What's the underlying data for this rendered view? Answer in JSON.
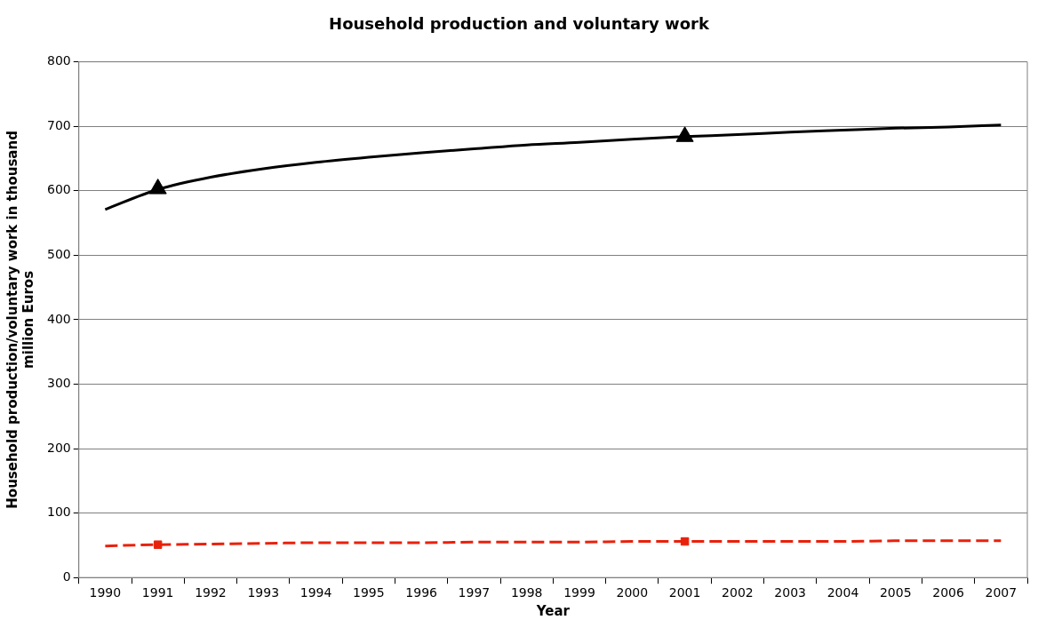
{
  "chart_data": {
    "type": "line",
    "title": "Household production and voluntary work",
    "xlabel": "Year",
    "ylabel": "Household production/voluntary work in thousand million Euros",
    "categories": [
      "1990",
      "1991",
      "1992",
      "1993",
      "1994",
      "1995",
      "1996",
      "1997",
      "1998",
      "1999",
      "2000",
      "2001",
      "2002",
      "2003",
      "2004",
      "2005",
      "2006",
      "2007"
    ],
    "series": [
      {
        "color": "#000000",
        "marker": "none",
        "line_style": "solid",
        "values": [
          571,
          602,
          621,
          634,
          644,
          652,
          659,
          665,
          671,
          675,
          680,
          684,
          687,
          691,
          694,
          697,
          699,
          702
        ]
      },
      {
        "color": "#e8210c",
        "marker": "none",
        "line_style": "dashed",
        "values": [
          49,
          51,
          52,
          53,
          54,
          54,
          54,
          55,
          55,
          55,
          56,
          56,
          56,
          56,
          56,
          57,
          57,
          57
        ]
      },
      {
        "type": "scatter",
        "color": "#000000",
        "marker": "triangle",
        "values": [
          null,
          603,
          null,
          null,
          null,
          null,
          null,
          null,
          null,
          null,
          null,
          684,
          null,
          null,
          null,
          null,
          null,
          null
        ]
      },
      {
        "type": "scatter",
        "color": "#e8210c",
        "marker": "square",
        "values": [
          null,
          51,
          null,
          null,
          null,
          null,
          null,
          null,
          null,
          null,
          null,
          56,
          null,
          null,
          null,
          null,
          null,
          null
        ]
      }
    ],
    "ylim": [
      0,
      800
    ],
    "yticks": [
      0,
      100,
      200,
      300,
      400,
      500,
      600,
      700,
      800
    ],
    "grid": "y",
    "legend": false
  }
}
